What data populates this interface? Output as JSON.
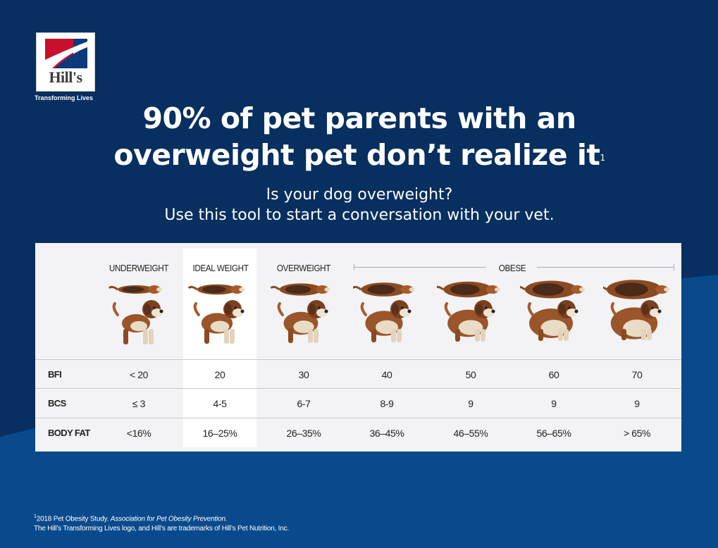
{
  "brand": {
    "logo_text": "Hill's",
    "tagline": "Transforming Lives",
    "colors": {
      "background": "#06366b",
      "logo_red": "#c8102e",
      "logo_blue": "#0b3a7a"
    }
  },
  "headline": {
    "line1": "90% of pet parents with an",
    "line2": "overweight pet don’t realize it",
    "footnote_ref": "1"
  },
  "subhead": {
    "line1": "Is your dog overweight?",
    "line2": "Use this tool to start a conversation with your vet."
  },
  "table": {
    "column_headers": [
      "UNDERWEIGHT",
      "IDEAL WEIGHT",
      "OVERWEIGHT",
      "OBESE"
    ],
    "highlighted_column": "IDEAL WEIGHT",
    "rows": [
      {
        "label": "BFI",
        "values": [
          "< 20",
          "20",
          "30",
          "40",
          "50",
          "60",
          "70"
        ]
      },
      {
        "label": "BCS",
        "values": [
          "≤ 3",
          "4-5",
          "6-7",
          "8-9",
          "9",
          "9",
          "9"
        ]
      },
      {
        "label": "BODY FAT",
        "values": [
          "<16%",
          "16–25%",
          "26–35%",
          "36–45%",
          "46–55%",
          "56–65%",
          "> 65%"
        ]
      }
    ],
    "dog_icons": [
      "dog-underweight-icon",
      "dog-ideal-icon",
      "dog-overweight-icon",
      "dog-obese-40-icon",
      "dog-obese-50-icon",
      "dog-obese-60-icon",
      "dog-obese-70-icon"
    ]
  },
  "footnote": {
    "ref": "1",
    "study": "2018 Pet Obesity Study. ",
    "source": "Association for Pet Obesity Prevention.",
    "trademark": "The Hill’s Transforming Lives logo, and Hill’s are trademarks of Hill’s Pet Nutrition, Inc."
  }
}
